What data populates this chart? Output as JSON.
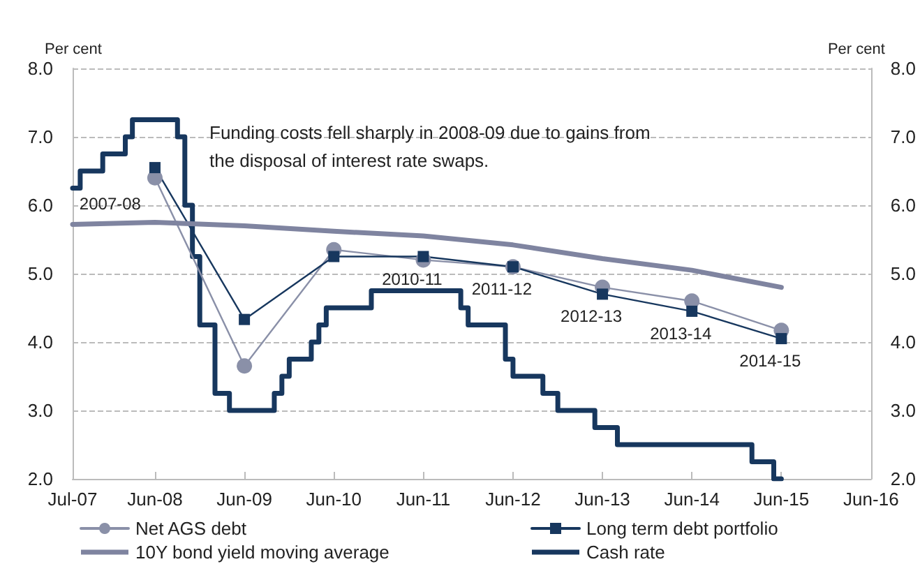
{
  "chart_data": {
    "type": "line",
    "ylabel": "Per cent",
    "y2label": "Per cent",
    "annotations": [
      "Funding costs fell sharply in 2008-09 due to gains from the disposal of interest rate swaps.",
      {
        "text": "2007-08",
        "x": "2008-06",
        "y": 6.55
      },
      {
        "text": "2010-11",
        "x": "2011-06",
        "y": 5.25
      },
      {
        "text": "2011-12",
        "x": "2012-06",
        "y": 5.1
      },
      {
        "text": "2012-13",
        "x": "2013-06",
        "y": 4.7
      },
      {
        "text": "2013-14",
        "x": "2014-06",
        "y": 4.45
      },
      {
        "text": "2014-15",
        "x": "2015-06",
        "y": 4.05
      }
    ],
    "series": [
      {
        "name": "Net AGS debt",
        "color": "#8a90a8",
        "marker": "circle",
        "x": [
          "2008-06",
          "2009-06",
          "2010-06",
          "2011-06",
          "2012-06",
          "2013-06",
          "2014-06",
          "2015-06"
        ],
        "values": [
          6.4,
          3.65,
          5.35,
          5.2,
          5.1,
          4.8,
          4.6,
          4.17
        ]
      },
      {
        "name": "Long term debt portfolio",
        "color": "#17375e",
        "marker": "square",
        "x": [
          "2008-06",
          "2009-06",
          "2010-06",
          "2011-06",
          "2012-06",
          "2013-06",
          "2014-06",
          "2015-06"
        ],
        "values": [
          6.55,
          4.33,
          5.25,
          5.25,
          5.1,
          4.7,
          4.45,
          4.05
        ]
      },
      {
        "name": "10Y bond yield moving average",
        "color": "#7f84a0",
        "marker": "none",
        "x": [
          "2007-07",
          "2008-06",
          "2009-06",
          "2010-06",
          "2011-06",
          "2012-06",
          "2013-06",
          "2014-06",
          "2015-06"
        ],
        "values": [
          5.72,
          5.75,
          5.7,
          5.62,
          5.55,
          5.42,
          5.22,
          5.05,
          4.8
        ]
      },
      {
        "name": "Cash rate",
        "type": "step",
        "color": "#17375e",
        "marker": "none",
        "x": [
          "2007-07",
          "2007-08",
          "2007-11",
          "2008-02",
          "2008-03",
          "2008-09",
          "2008-10",
          "2008-11",
          "2008-12",
          "2009-02",
          "2009-04",
          "2009-10",
          "2009-11",
          "2009-12",
          "2010-03",
          "2010-04",
          "2010-05",
          "2010-11",
          "2011-11",
          "2011-12",
          "2012-05",
          "2012-06",
          "2012-10",
          "2012-12",
          "2013-05",
          "2013-08",
          "2015-02",
          "2015-05",
          "2015-06"
        ],
        "values": [
          6.25,
          6.5,
          6.75,
          7.0,
          7.25,
          7.0,
          6.0,
          5.25,
          4.25,
          3.25,
          3.0,
          3.25,
          3.5,
          3.75,
          4.0,
          4.25,
          4.5,
          4.75,
          4.5,
          4.25,
          3.75,
          3.5,
          3.25,
          3.0,
          2.75,
          2.5,
          2.25,
          2.0,
          2.0
        ]
      }
    ],
    "xlim": [
      "2007-07",
      "2016-06"
    ],
    "xticks": [
      {
        "value": "2007-07",
        "label": "Jul-07"
      },
      {
        "value": "2008-06",
        "label": "Jun-08"
      },
      {
        "value": "2009-06",
        "label": "Jun-09"
      },
      {
        "value": "2010-06",
        "label": "Jun-10"
      },
      {
        "value": "2011-06",
        "label": "Jun-11"
      },
      {
        "value": "2012-06",
        "label": "Jun-12"
      },
      {
        "value": "2013-06",
        "label": "Jun-13"
      },
      {
        "value": "2014-06",
        "label": "Jun-14"
      },
      {
        "value": "2015-06",
        "label": "Jun-15"
      },
      {
        "value": "2016-06",
        "label": "Jun-16"
      }
    ],
    "ylim": [
      2,
      8
    ],
    "yticks": [
      {
        "value": 2,
        "label": "2.0"
      },
      {
        "value": 3,
        "label": "3.0"
      },
      {
        "value": 4,
        "label": "4.0"
      },
      {
        "value": 5,
        "label": "5.0"
      },
      {
        "value": 6,
        "label": "6.0"
      },
      {
        "value": 7,
        "label": "7.0"
      },
      {
        "value": 8,
        "label": "8.0"
      }
    ],
    "y2lim": [
      2,
      8
    ],
    "y2ticks": [
      {
        "value": 2,
        "label": "2.0"
      },
      {
        "value": 3,
        "label": "3.0"
      },
      {
        "value": 4,
        "label": "4.0"
      },
      {
        "value": 5,
        "label": "5.0"
      },
      {
        "value": 6,
        "label": "6.0"
      },
      {
        "value": 7,
        "label": "7.0"
      },
      {
        "value": 8,
        "label": "8.0"
      }
    ],
    "grid": "y",
    "legend": "bottom"
  }
}
